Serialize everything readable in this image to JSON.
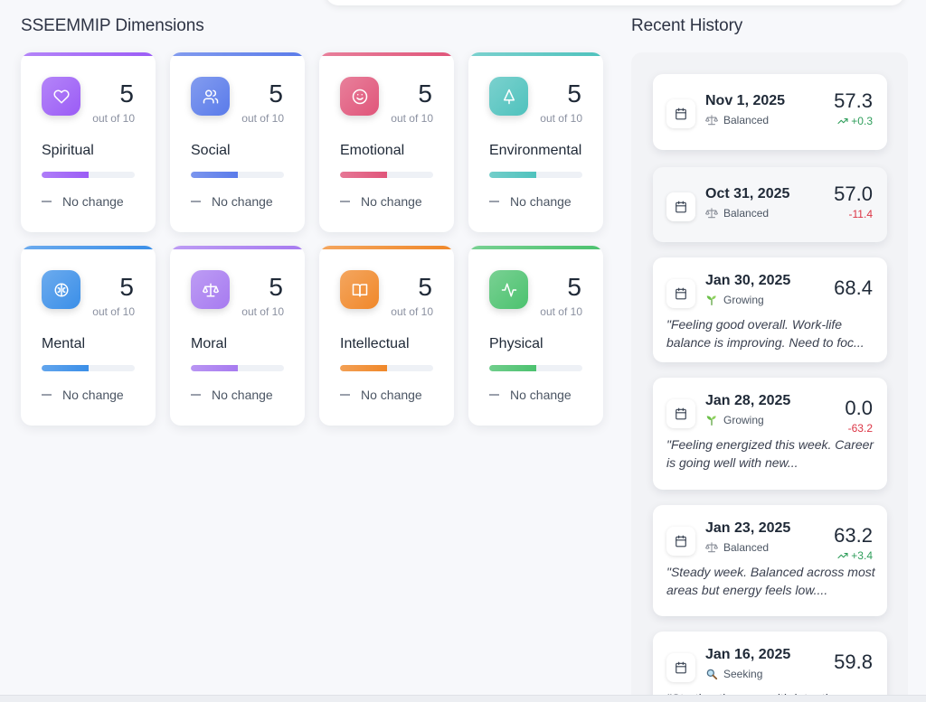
{
  "sections": {
    "dimensions_title": "SSEEMMIP Dimensions",
    "history_title": "Recent History"
  },
  "dimensions": [
    {
      "name": "Spiritual",
      "score": "5",
      "out_of": "out of 10",
      "change": "No change",
      "progress": 0.5,
      "icon": "heart-icon",
      "color": "#9b5cf6"
    },
    {
      "name": "Social",
      "score": "5",
      "out_of": "out of 10",
      "change": "No change",
      "progress": 0.5,
      "icon": "users-icon",
      "color": "#5a7bea"
    },
    {
      "name": "Emotional",
      "score": "5",
      "out_of": "out of 10",
      "change": "No change",
      "progress": 0.5,
      "icon": "smile-icon",
      "color": "#e0557a"
    },
    {
      "name": "Environmental",
      "score": "5",
      "out_of": "out of 10",
      "change": "No change",
      "progress": 0.5,
      "icon": "tree-icon",
      "color": "#4fc2bd"
    },
    {
      "name": "Mental",
      "score": "5",
      "out_of": "out of 10",
      "change": "No change",
      "progress": 0.5,
      "icon": "brain-icon",
      "color": "#3b8fe8"
    },
    {
      "name": "Moral",
      "score": "5",
      "out_of": "out of 10",
      "change": "No change",
      "progress": 0.5,
      "icon": "scale-icon",
      "color": "#a77bf0"
    },
    {
      "name": "Intellectual",
      "score": "5",
      "out_of": "out of 10",
      "change": "No change",
      "progress": 0.5,
      "icon": "book-icon",
      "color": "#f0882a"
    },
    {
      "name": "Physical",
      "score": "5",
      "out_of": "out of 10",
      "change": "No change",
      "progress": 0.5,
      "icon": "activity-icon",
      "color": "#4cc26f"
    }
  ],
  "history": [
    {
      "date": "Nov 1, 2025",
      "state": "Balanced",
      "state_icon": "scale-icon",
      "value": "57.3",
      "delta": "+0.3",
      "direction": "up",
      "note": ""
    },
    {
      "date": "Oct 31, 2025",
      "state": "Balanced",
      "state_icon": "scale-icon",
      "value": "57.0",
      "delta": "-11.4",
      "direction": "down",
      "note": ""
    },
    {
      "date": "Jan 30, 2025",
      "state": "Growing",
      "state_icon": "seedling-icon",
      "value": "68.4",
      "delta": "",
      "direction": "",
      "note": "\"Feeling good overall. Work-life balance is improving. Need to foc..."
    },
    {
      "date": "Jan 28, 2025",
      "state": "Growing",
      "state_icon": "seedling-icon",
      "value": "0.0",
      "delta": "-63.2",
      "direction": "down",
      "note": "\"Feeling energized this week. Career is going well with new..."
    },
    {
      "date": "Jan 23, 2025",
      "state": "Balanced",
      "state_icon": "scale-icon",
      "value": "63.2",
      "delta": "+3.4",
      "direction": "up",
      "note": "\"Steady week. Balanced across most areas but energy feels low...."
    },
    {
      "date": "Jan 16, 2025",
      "state": "Seeking",
      "state_icon": "magnifier-icon",
      "value": "59.8",
      "delta": "",
      "direction": "",
      "note": "\"Starting the year with intention..."
    }
  ]
}
